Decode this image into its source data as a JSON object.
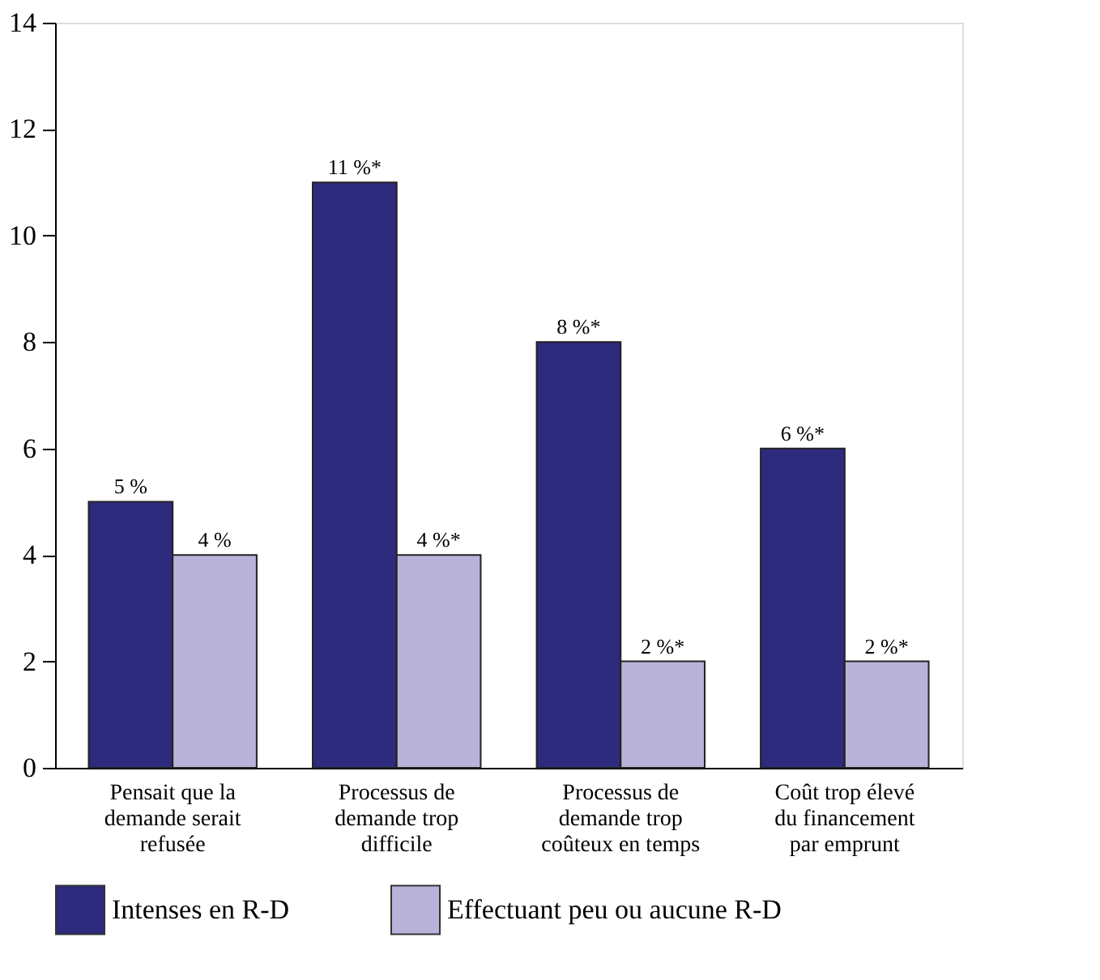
{
  "chart_data": {
    "type": "bar",
    "categories": [
      "Pensait que la demande serait refusée",
      "Processus de demande trop difficile",
      "Processus de demande trop coûteux en temps",
      "Coût trop élevé du financement par emprunt"
    ],
    "series": [
      {
        "name": "Intenses en R-D",
        "color": "#2e2a7e",
        "values": [
          5,
          11,
          8,
          6
        ],
        "value_labels": [
          "5 %",
          "11 %*",
          "8 %*",
          "6 %*"
        ]
      },
      {
        "name": "Effectuant peu ou aucune R-D",
        "color": "#b9b3d9",
        "values": [
          4,
          4,
          2,
          2
        ],
        "value_labels": [
          "4 %",
          "4 %*",
          "2 %*",
          "2 %*"
        ]
      }
    ],
    "ylim": [
      0,
      14
    ],
    "yticks": [
      0,
      2,
      4,
      6,
      8,
      10,
      12,
      14
    ],
    "grid": false,
    "legend": "bottom"
  }
}
